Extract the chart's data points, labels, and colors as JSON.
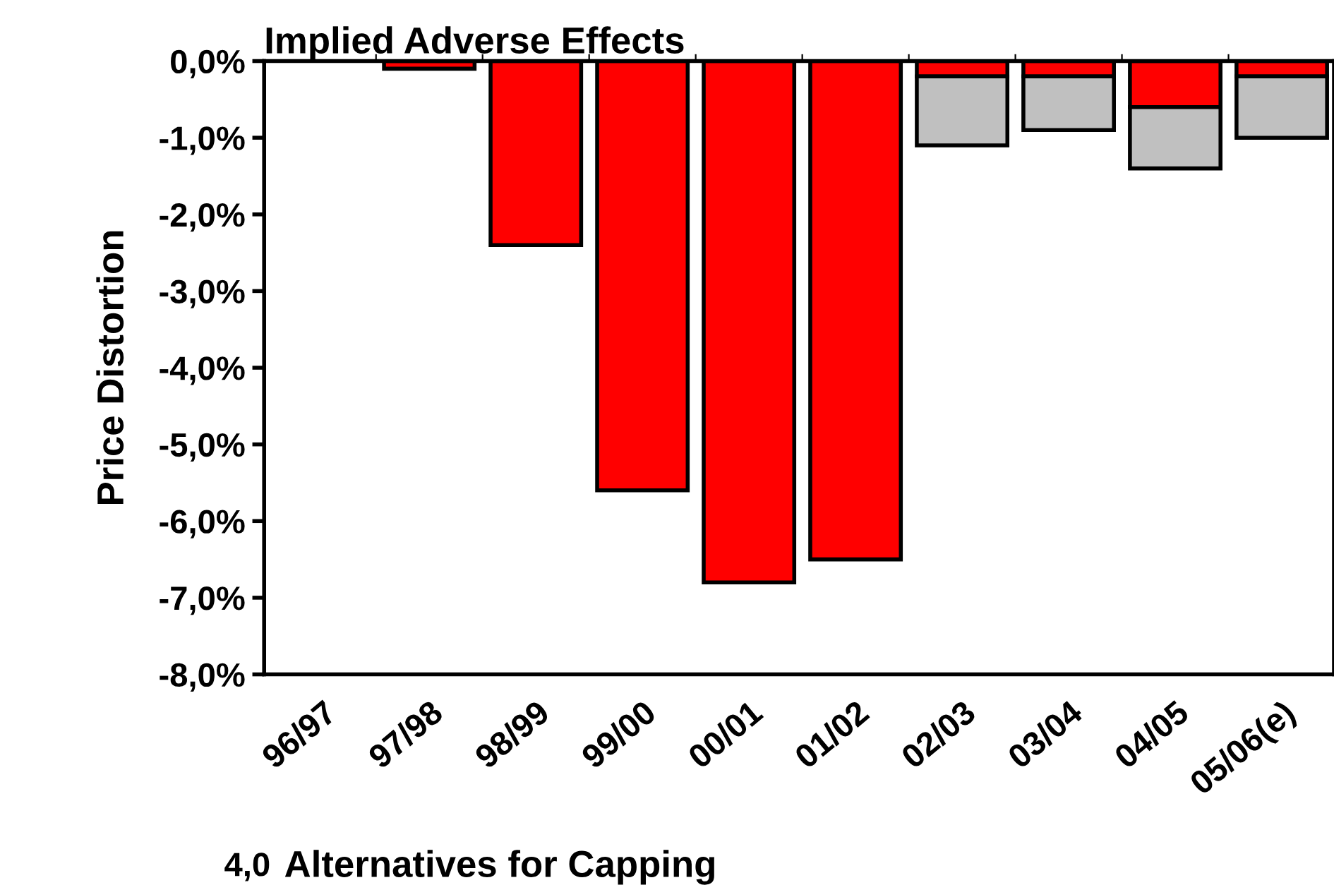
{
  "chart_data": [
    {
      "type": "bar",
      "title": "Implied Adverse Effects",
      "ylabel": "Price Distortion",
      "stacked": true,
      "categories": [
        "96/97",
        "97/98",
        "98/99",
        "99/00",
        "00/01",
        "01/02",
        "02/03",
        "03/04",
        "04/05",
        "05/06(e)"
      ],
      "series": [
        {
          "color": "#ff0000",
          "values": [
            0,
            -0.1,
            -2.4,
            -5.6,
            -6.8,
            -6.5,
            -0.2,
            -0.2,
            -0.6,
            -0.2
          ]
        },
        {
          "color": "#c0c0c0",
          "values": [
            0,
            0,
            0,
            0,
            0,
            0,
            -0.9,
            -0.7,
            -0.8,
            -0.8
          ]
        }
      ],
      "ylim": [
        -8,
        0
      ],
      "yticks": [
        {
          "value": 0,
          "label": "0,0%"
        },
        {
          "value": -1,
          "label": "-1,0%"
        },
        {
          "value": -2,
          "label": "-2,0%"
        },
        {
          "value": -3,
          "label": "-3,0%"
        },
        {
          "value": -4,
          "label": "-4,0%"
        },
        {
          "value": -5,
          "label": "-5,0%"
        },
        {
          "value": -6,
          "label": "-6,0%"
        },
        {
          "value": -7,
          "label": "-7,0%"
        },
        {
          "value": -8,
          "label": "-8,0%"
        }
      ],
      "grid": false,
      "legend": false
    },
    {
      "type": "other",
      "title": "Alternatives for Capping",
      "annotations": [
        "4,0"
      ]
    }
  ]
}
